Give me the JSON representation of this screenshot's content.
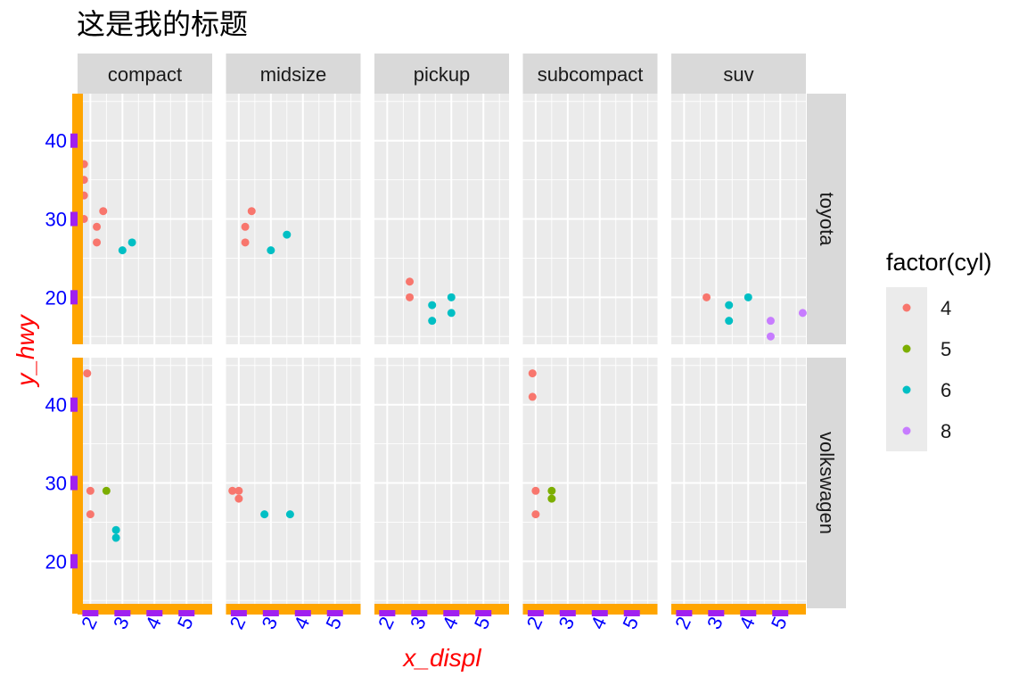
{
  "chart_data": {
    "type": "scatter",
    "title": "这是我的标题",
    "xlabel": "x_displ",
    "ylabel": "y_hwy",
    "xlim": [
      1.6,
      5.8
    ],
    "ylim": [
      14,
      46
    ],
    "x_ticks": [
      "2",
      "3",
      "4",
      "5"
    ],
    "x_tick_values": [
      2,
      3,
      4,
      5
    ],
    "y_ticks": [
      "20",
      "30",
      "40"
    ],
    "y_tick_values": [
      20,
      30,
      40
    ],
    "grid": true,
    "facet_cols": [
      "compact",
      "midsize",
      "pickup",
      "subcompact",
      "suv"
    ],
    "facet_rows": [
      "toyota",
      "volkswagen"
    ],
    "legend": {
      "title": "factor(cyl)",
      "position": "right",
      "entries": [
        {
          "label": "4",
          "color": "#F8766D"
        },
        {
          "label": "5",
          "color": "#7CAE00"
        },
        {
          "label": "6",
          "color": "#00BFC4"
        },
        {
          "label": "8",
          "color": "#C77CFF"
        }
      ]
    },
    "colors": {
      "axis_line": "#FFA500",
      "axis_ticks": "#A020F0",
      "tick_text": "#0000FF",
      "axis_title": "#FF0000",
      "panel_bg": "#EBEBEB",
      "strip_bg": "#D9D9D9",
      "grid": "#FFFFFF"
    },
    "points": [
      {
        "row": "toyota",
        "col": "compact",
        "x": 1.8,
        "y": 37,
        "cyl": "4"
      },
      {
        "row": "toyota",
        "col": "compact",
        "x": 1.8,
        "y": 35,
        "cyl": "4"
      },
      {
        "row": "toyota",
        "col": "compact",
        "x": 1.8,
        "y": 33,
        "cyl": "4"
      },
      {
        "row": "toyota",
        "col": "compact",
        "x": 1.8,
        "y": 30,
        "cyl": "4"
      },
      {
        "row": "toyota",
        "col": "compact",
        "x": 2.2,
        "y": 29,
        "cyl": "4"
      },
      {
        "row": "toyota",
        "col": "compact",
        "x": 2.2,
        "y": 27,
        "cyl": "4"
      },
      {
        "row": "toyota",
        "col": "compact",
        "x": 2.4,
        "y": 31,
        "cyl": "4"
      },
      {
        "row": "toyota",
        "col": "compact",
        "x": 3.0,
        "y": 26,
        "cyl": "6"
      },
      {
        "row": "toyota",
        "col": "compact",
        "x": 3.3,
        "y": 27,
        "cyl": "6"
      },
      {
        "row": "toyota",
        "col": "midsize",
        "x": 2.2,
        "y": 29,
        "cyl": "4"
      },
      {
        "row": "toyota",
        "col": "midsize",
        "x": 2.2,
        "y": 27,
        "cyl": "4"
      },
      {
        "row": "toyota",
        "col": "midsize",
        "x": 2.4,
        "y": 31,
        "cyl": "4"
      },
      {
        "row": "toyota",
        "col": "midsize",
        "x": 3.0,
        "y": 26,
        "cyl": "6"
      },
      {
        "row": "toyota",
        "col": "midsize",
        "x": 3.5,
        "y": 28,
        "cyl": "6"
      },
      {
        "row": "toyota",
        "col": "pickup",
        "x": 2.7,
        "y": 22,
        "cyl": "4"
      },
      {
        "row": "toyota",
        "col": "pickup",
        "x": 2.7,
        "y": 20,
        "cyl": "4"
      },
      {
        "row": "toyota",
        "col": "pickup",
        "x": 3.4,
        "y": 19,
        "cyl": "6"
      },
      {
        "row": "toyota",
        "col": "pickup",
        "x": 3.4,
        "y": 17,
        "cyl": "6"
      },
      {
        "row": "toyota",
        "col": "pickup",
        "x": 4.0,
        "y": 20,
        "cyl": "6"
      },
      {
        "row": "toyota",
        "col": "pickup",
        "x": 4.0,
        "y": 18,
        "cyl": "6"
      },
      {
        "row": "toyota",
        "col": "suv",
        "x": 2.7,
        "y": 20,
        "cyl": "4"
      },
      {
        "row": "toyota",
        "col": "suv",
        "x": 3.4,
        "y": 19,
        "cyl": "6"
      },
      {
        "row": "toyota",
        "col": "suv",
        "x": 3.4,
        "y": 17,
        "cyl": "6"
      },
      {
        "row": "toyota",
        "col": "suv",
        "x": 4.0,
        "y": 20,
        "cyl": "6"
      },
      {
        "row": "toyota",
        "col": "suv",
        "x": 4.7,
        "y": 17,
        "cyl": "8"
      },
      {
        "row": "toyota",
        "col": "suv",
        "x": 4.7,
        "y": 15,
        "cyl": "8"
      },
      {
        "row": "toyota",
        "col": "suv",
        "x": 5.7,
        "y": 18,
        "cyl": "8"
      },
      {
        "row": "volkswagen",
        "col": "compact",
        "x": 1.9,
        "y": 44,
        "cyl": "4"
      },
      {
        "row": "volkswagen",
        "col": "compact",
        "x": 2.0,
        "y": 29,
        "cyl": "4"
      },
      {
        "row": "volkswagen",
        "col": "compact",
        "x": 2.0,
        "y": 26,
        "cyl": "4"
      },
      {
        "row": "volkswagen",
        "col": "compact",
        "x": 2.5,
        "y": 29,
        "cyl": "5"
      },
      {
        "row": "volkswagen",
        "col": "compact",
        "x": 2.8,
        "y": 24,
        "cyl": "6"
      },
      {
        "row": "volkswagen",
        "col": "compact",
        "x": 2.8,
        "y": 23,
        "cyl": "6"
      },
      {
        "row": "volkswagen",
        "col": "midsize",
        "x": 1.8,
        "y": 29,
        "cyl": "4"
      },
      {
        "row": "volkswagen",
        "col": "midsize",
        "x": 2.0,
        "y": 29,
        "cyl": "4"
      },
      {
        "row": "volkswagen",
        "col": "midsize",
        "x": 2.0,
        "y": 28,
        "cyl": "4"
      },
      {
        "row": "volkswagen",
        "col": "midsize",
        "x": 2.8,
        "y": 26,
        "cyl": "6"
      },
      {
        "row": "volkswagen",
        "col": "midsize",
        "x": 3.6,
        "y": 26,
        "cyl": "6"
      },
      {
        "row": "volkswagen",
        "col": "subcompact",
        "x": 1.9,
        "y": 44,
        "cyl": "4"
      },
      {
        "row": "volkswagen",
        "col": "subcompact",
        "x": 1.9,
        "y": 41,
        "cyl": "4"
      },
      {
        "row": "volkswagen",
        "col": "subcompact",
        "x": 2.0,
        "y": 29,
        "cyl": "4"
      },
      {
        "row": "volkswagen",
        "col": "subcompact",
        "x": 2.0,
        "y": 26,
        "cyl": "4"
      },
      {
        "row": "volkswagen",
        "col": "subcompact",
        "x": 2.5,
        "y": 29,
        "cyl": "5"
      },
      {
        "row": "volkswagen",
        "col": "subcompact",
        "x": 2.5,
        "y": 28,
        "cyl": "5"
      }
    ]
  }
}
